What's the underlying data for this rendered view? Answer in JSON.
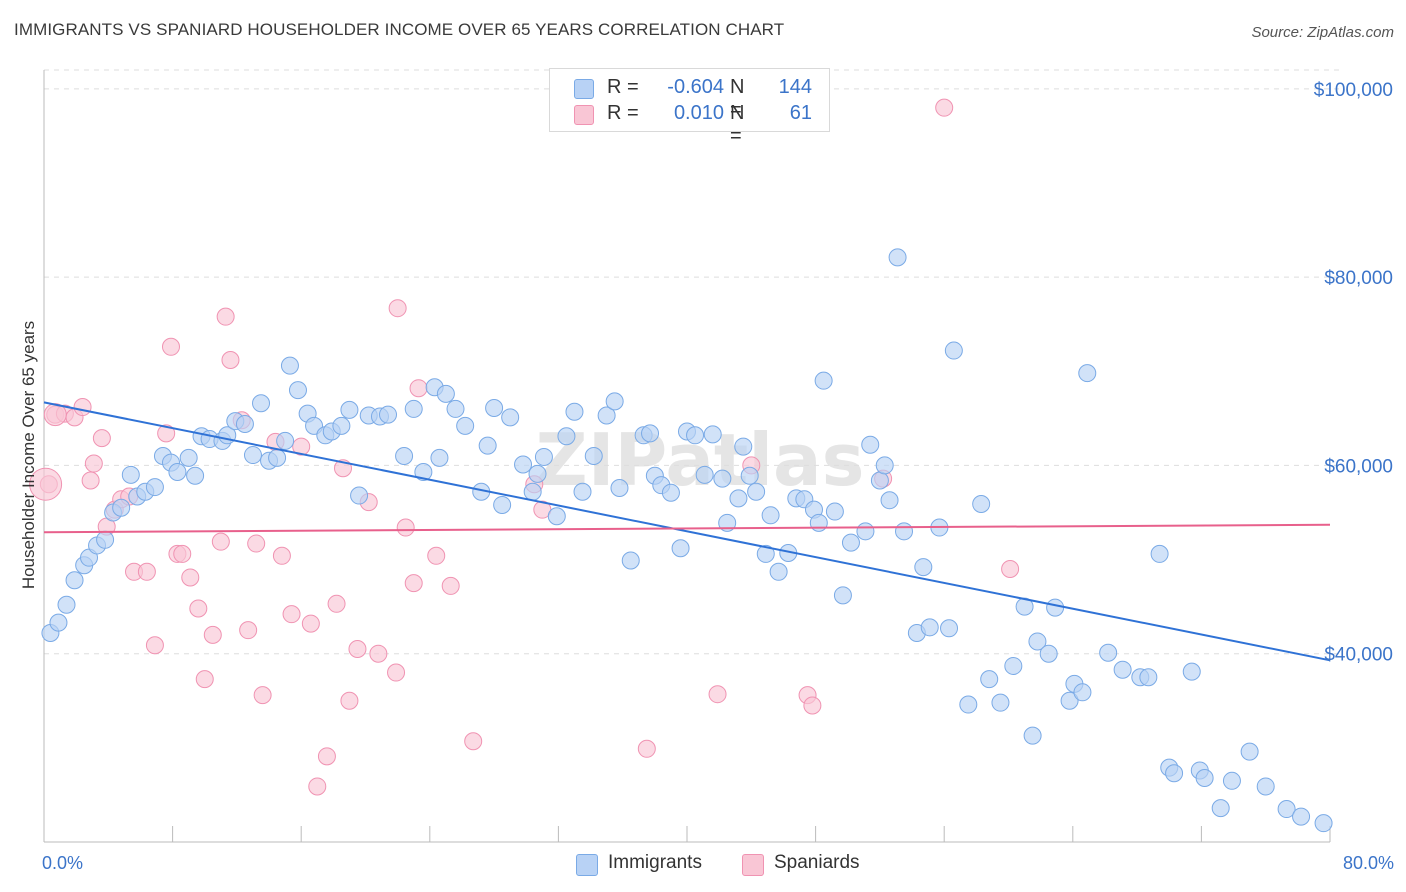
{
  "header": {
    "title": "IMMIGRANTS VS SPANIARD HOUSEHOLDER INCOME OVER 65 YEARS CORRELATION CHART",
    "source": "Source: ZipAtlas.com"
  },
  "legend_top": {
    "rows": [
      {
        "r_label": "R =",
        "r_value": "-0.604",
        "n_label": "N =",
        "n_value": "144"
      },
      {
        "r_label": "R =",
        "r_value": "0.010",
        "n_label": "N =",
        "n_value": "61"
      }
    ]
  },
  "legend_bottom": {
    "immigrants": "Immigrants",
    "spaniards": "Spaniards"
  },
  "colors": {
    "blue_fill": "#b8d2f5",
    "blue_stroke": "#7aaae6",
    "blue_line": "#2f72d6",
    "pink_fill": "#f9c6d5",
    "pink_stroke": "#f093b2",
    "pink_line": "#e8608c",
    "axis_text": "#3b74c9",
    "grid": "#dddddd"
  },
  "watermark": "ZIPatlas",
  "chart_data": {
    "type": "scatter",
    "title": "IMMIGRANTS VS SPANIARD HOUSEHOLDER INCOME OVER 65 YEARS CORRELATION CHART",
    "xlabel": "",
    "ylabel": "Householder Income Over 65 years",
    "xlim": [
      0,
      80
    ],
    "ylim": [
      20000,
      102000
    ],
    "x_tick_labels": [
      "0.0%",
      "80.0%"
    ],
    "y_ticks": [
      40000,
      60000,
      80000,
      100000
    ],
    "y_tick_labels": [
      "$40,000",
      "$60,000",
      "$80,000",
      "$100,000"
    ],
    "series": [
      {
        "name": "Immigrants",
        "r": -0.604,
        "n": 144,
        "trend": {
          "x": [
            0,
            80
          ],
          "y": [
            66700,
            39300
          ]
        },
        "points": [
          [
            0.4,
            42200
          ],
          [
            0.9,
            43300
          ],
          [
            1.4,
            45200
          ],
          [
            1.9,
            47800
          ],
          [
            2.5,
            49400
          ],
          [
            2.8,
            50200
          ],
          [
            3.3,
            51500
          ],
          [
            3.8,
            52100
          ],
          [
            4.3,
            55000
          ],
          [
            4.8,
            55500
          ],
          [
            5.4,
            59000
          ],
          [
            5.8,
            56700
          ],
          [
            6.3,
            57200
          ],
          [
            6.9,
            57700
          ],
          [
            7.4,
            61000
          ],
          [
            7.9,
            60300
          ],
          [
            8.3,
            59300
          ],
          [
            9.0,
            60800
          ],
          [
            9.4,
            58900
          ],
          [
            9.8,
            63100
          ],
          [
            10.3,
            62800
          ],
          [
            11.1,
            62600
          ],
          [
            11.4,
            63200
          ],
          [
            11.9,
            64700
          ],
          [
            12.5,
            64400
          ],
          [
            13.0,
            61100
          ],
          [
            13.5,
            66600
          ],
          [
            14.0,
            60500
          ],
          [
            14.5,
            60800
          ],
          [
            15.0,
            62600
          ],
          [
            15.3,
            70600
          ],
          [
            15.8,
            68000
          ],
          [
            16.4,
            65500
          ],
          [
            16.8,
            64200
          ],
          [
            17.5,
            63200
          ],
          [
            17.9,
            63600
          ],
          [
            18.5,
            64200
          ],
          [
            19.0,
            65900
          ],
          [
            19.6,
            56800
          ],
          [
            20.2,
            65300
          ],
          [
            20.9,
            65200
          ],
          [
            21.4,
            65400
          ],
          [
            22.4,
            61000
          ],
          [
            23.0,
            66000
          ],
          [
            23.6,
            59300
          ],
          [
            24.3,
            68300
          ],
          [
            24.6,
            60800
          ],
          [
            25.0,
            67600
          ],
          [
            25.6,
            66000
          ],
          [
            26.2,
            64200
          ],
          [
            27.2,
            57200
          ],
          [
            27.6,
            62100
          ],
          [
            28.0,
            66100
          ],
          [
            28.5,
            55800
          ],
          [
            29.0,
            65100
          ],
          [
            29.8,
            60100
          ],
          [
            30.4,
            57200
          ],
          [
            30.7,
            59100
          ],
          [
            31.1,
            60900
          ],
          [
            31.9,
            54600
          ],
          [
            32.5,
            63100
          ],
          [
            33.0,
            65700
          ],
          [
            33.5,
            57200
          ],
          [
            34.2,
            61000
          ],
          [
            35.0,
            65300
          ],
          [
            35.5,
            66800
          ],
          [
            35.8,
            57600
          ],
          [
            36.5,
            49900
          ],
          [
            37.3,
            63200
          ],
          [
            37.7,
            63400
          ],
          [
            38.0,
            58900
          ],
          [
            38.4,
            57900
          ],
          [
            39.0,
            57100
          ],
          [
            39.6,
            51200
          ],
          [
            40.0,
            63600
          ],
          [
            40.5,
            63200
          ],
          [
            41.1,
            59000
          ],
          [
            41.6,
            63300
          ],
          [
            42.2,
            58600
          ],
          [
            42.5,
            53900
          ],
          [
            43.2,
            56500
          ],
          [
            43.5,
            62000
          ],
          [
            43.9,
            58900
          ],
          [
            44.3,
            57200
          ],
          [
            44.9,
            50600
          ],
          [
            45.2,
            54700
          ],
          [
            45.7,
            48700
          ],
          [
            46.3,
            50700
          ],
          [
            46.8,
            56500
          ],
          [
            47.3,
            56400
          ],
          [
            47.9,
            55300
          ],
          [
            48.2,
            53900
          ],
          [
            48.5,
            69000
          ],
          [
            49.2,
            55100
          ],
          [
            49.7,
            46200
          ],
          [
            50.2,
            51800
          ],
          [
            51.1,
            53000
          ],
          [
            51.4,
            62200
          ],
          [
            52.0,
            58400
          ],
          [
            52.3,
            60000
          ],
          [
            52.6,
            56300
          ],
          [
            53.1,
            82100
          ],
          [
            53.5,
            53000
          ],
          [
            54.3,
            42200
          ],
          [
            54.7,
            49200
          ],
          [
            55.1,
            42800
          ],
          [
            55.7,
            53400
          ],
          [
            56.3,
            42700
          ],
          [
            56.6,
            72200
          ],
          [
            57.5,
            34600
          ],
          [
            58.3,
            55900
          ],
          [
            58.8,
            37300
          ],
          [
            59.5,
            34800
          ],
          [
            60.3,
            38700
          ],
          [
            61.0,
            45000
          ],
          [
            61.5,
            31300
          ],
          [
            61.8,
            41300
          ],
          [
            62.5,
            40000
          ],
          [
            62.9,
            44900
          ],
          [
            63.8,
            35000
          ],
          [
            64.1,
            36800
          ],
          [
            64.6,
            35900
          ],
          [
            64.9,
            69800
          ],
          [
            66.2,
            40100
          ],
          [
            67.1,
            38300
          ],
          [
            68.2,
            37500
          ],
          [
            68.7,
            37500
          ],
          [
            69.4,
            50600
          ],
          [
            70.0,
            27900
          ],
          [
            70.3,
            27300
          ],
          [
            71.4,
            38100
          ],
          [
            71.9,
            27600
          ],
          [
            72.2,
            26800
          ],
          [
            73.2,
            23600
          ],
          [
            73.9,
            26500
          ],
          [
            75.0,
            29600
          ],
          [
            76.0,
            25900
          ],
          [
            77.3,
            23500
          ],
          [
            78.2,
            22700
          ],
          [
            79.6,
            22000
          ]
        ]
      },
      {
        "name": "Spaniards",
        "r": 0.01,
        "n": 61,
        "trend": {
          "x": [
            0,
            80
          ],
          "y": [
            52900,
            53700
          ]
        },
        "points": [
          [
            0.3,
            58000
          ],
          [
            0.7,
            65400
          ],
          [
            1.3,
            65500
          ],
          [
            1.9,
            65100
          ],
          [
            2.4,
            66200
          ],
          [
            2.9,
            58400
          ],
          [
            3.1,
            60200
          ],
          [
            3.6,
            62900
          ],
          [
            3.9,
            53500
          ],
          [
            4.4,
            55300
          ],
          [
            4.8,
            56400
          ],
          [
            5.3,
            56700
          ],
          [
            5.6,
            48700
          ],
          [
            6.4,
            48700
          ],
          [
            6.9,
            40900
          ],
          [
            7.6,
            63400
          ],
          [
            7.9,
            72600
          ],
          [
            8.3,
            50600
          ],
          [
            8.6,
            50600
          ],
          [
            9.1,
            48100
          ],
          [
            9.6,
            44800
          ],
          [
            10.0,
            37300
          ],
          [
            10.5,
            42000
          ],
          [
            11.0,
            51900
          ],
          [
            11.3,
            75800
          ],
          [
            11.6,
            71200
          ],
          [
            12.3,
            64800
          ],
          [
            12.7,
            42500
          ],
          [
            13.2,
            51700
          ],
          [
            13.6,
            35600
          ],
          [
            14.4,
            62500
          ],
          [
            14.8,
            50400
          ],
          [
            15.4,
            44200
          ],
          [
            16.0,
            62000
          ],
          [
            16.6,
            43200
          ],
          [
            17.0,
            25900
          ],
          [
            17.6,
            29100
          ],
          [
            18.2,
            45300
          ],
          [
            18.6,
            59700
          ],
          [
            19.0,
            35000
          ],
          [
            19.5,
            40500
          ],
          [
            20.2,
            56100
          ],
          [
            20.8,
            40000
          ],
          [
            21.9,
            38000
          ],
          [
            22.0,
            76700
          ],
          [
            22.5,
            53400
          ],
          [
            23.0,
            47500
          ],
          [
            23.3,
            68200
          ],
          [
            24.4,
            50400
          ],
          [
            25.3,
            47200
          ],
          [
            26.7,
            30700
          ],
          [
            31.0,
            55300
          ],
          [
            37.5,
            29900
          ],
          [
            41.9,
            35700
          ],
          [
            44.0,
            60000
          ],
          [
            47.5,
            35600
          ],
          [
            47.8,
            34500
          ],
          [
            52.2,
            58600
          ],
          [
            56.0,
            98000
          ],
          [
            60.1,
            49000
          ],
          [
            30.5,
            58000
          ]
        ]
      }
    ]
  }
}
